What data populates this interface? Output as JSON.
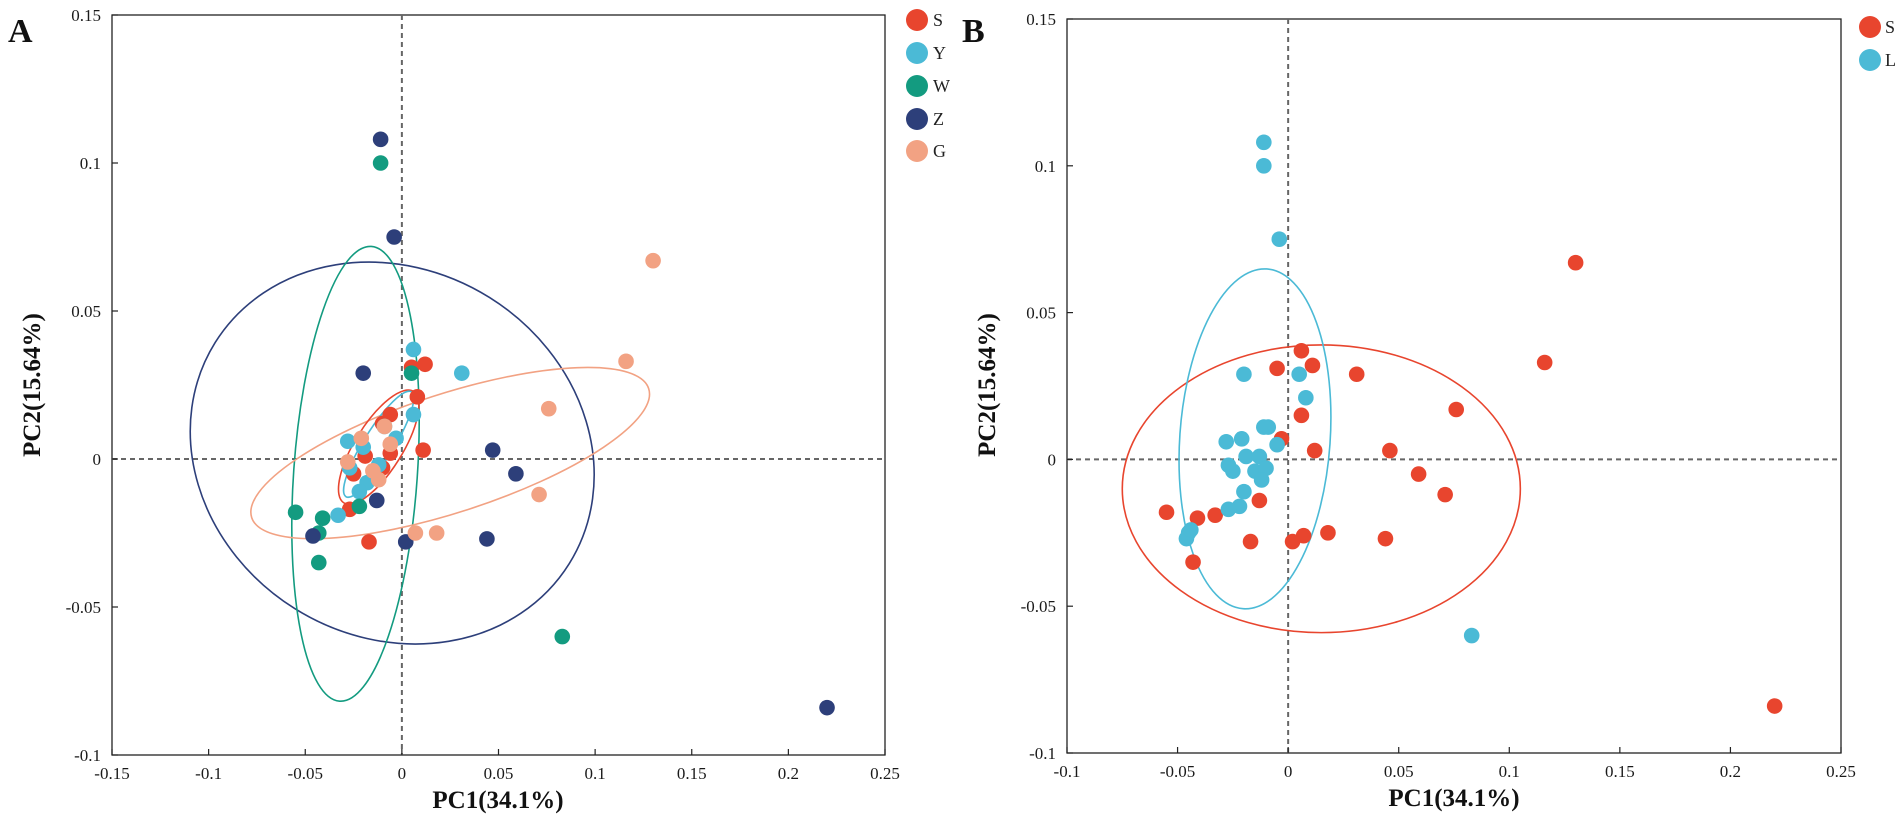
{
  "chart_data": [
    {
      "type": "scatter",
      "panel_label": "A",
      "xlabel": "PC1(34.1%)",
      "ylabel": "PC2(15.64%)",
      "xlim": [
        -0.15,
        0.25
      ],
      "ylim": [
        -0.1,
        0.15
      ],
      "xticks": [
        -0.15,
        -0.1,
        -0.05,
        0,
        0.05,
        0.1,
        0.15,
        0.2,
        0.25
      ],
      "xtick_labels": [
        "-0.15",
        "-0.1",
        "-0.05",
        "0",
        "0.05",
        "0.1",
        "0.15",
        "0.2",
        "0.25"
      ],
      "yticks": [
        -0.1,
        -0.05,
        0,
        0.05,
        0.1,
        0.15
      ],
      "ytick_labels": [
        "-0.1",
        "-0.05",
        "0",
        "0.05",
        "0.1",
        "0.15"
      ],
      "zero_lines": true,
      "legend_position": "outside-top-right",
      "series": [
        {
          "name": "S",
          "color": "#e8452e",
          "points": [
            [
              0.005,
              0.031
            ],
            [
              0.012,
              0.032
            ],
            [
              0.008,
              0.021
            ],
            [
              0.011,
              0.003
            ],
            [
              -0.006,
              0.015
            ],
            [
              -0.01,
              0.012
            ],
            [
              -0.006,
              0.002
            ],
            [
              -0.019,
              0.001
            ],
            [
              -0.025,
              -0.005
            ],
            [
              -0.01,
              -0.003
            ],
            [
              -0.014,
              -0.006
            ],
            [
              -0.027,
              -0.017
            ],
            [
              -0.017,
              -0.028
            ]
          ]
        },
        {
          "name": "Y",
          "color": "#4bbad6",
          "points": [
            [
              0.006,
              0.037
            ],
            [
              0.031,
              0.029
            ],
            [
              0.006,
              0.015
            ],
            [
              -0.009,
              0.011
            ],
            [
              -0.003,
              0.007
            ],
            [
              -0.02,
              0.004
            ],
            [
              -0.028,
              0.006
            ],
            [
              -0.027,
              -0.003
            ],
            [
              -0.018,
              -0.008
            ],
            [
              -0.022,
              -0.011
            ],
            [
              -0.033,
              -0.019
            ],
            [
              -0.012,
              -0.002
            ]
          ]
        },
        {
          "name": "W",
          "color": "#139b80",
          "points": [
            [
              -0.011,
              0.1
            ],
            [
              0.005,
              0.029
            ],
            [
              -0.055,
              -0.018
            ],
            [
              -0.041,
              -0.02
            ],
            [
              -0.043,
              -0.025
            ],
            [
              -0.043,
              -0.035
            ],
            [
              -0.022,
              -0.016
            ],
            [
              0.083,
              -0.06
            ]
          ]
        },
        {
          "name": "Z",
          "color": "#2d3f7a",
          "points": [
            [
              -0.011,
              0.108
            ],
            [
              -0.004,
              0.075
            ],
            [
              -0.02,
              0.029
            ],
            [
              0.047,
              0.003
            ],
            [
              0.059,
              -0.005
            ],
            [
              -0.013,
              -0.014
            ],
            [
              0.044,
              -0.027
            ],
            [
              0.002,
              -0.028
            ],
            [
              -0.046,
              -0.026
            ],
            [
              0.22,
              -0.084
            ]
          ]
        },
        {
          "name": "G",
          "color": "#f2a283",
          "points": [
            [
              0.13,
              0.067
            ],
            [
              0.116,
              0.033
            ],
            [
              0.076,
              0.017
            ],
            [
              0.071,
              -0.012
            ],
            [
              0.018,
              -0.025
            ],
            [
              0.007,
              -0.025
            ],
            [
              -0.009,
              0.011
            ],
            [
              -0.021,
              0.007
            ],
            [
              -0.006,
              0.005
            ],
            [
              -0.012,
              -0.007
            ],
            [
              -0.028,
              -0.001
            ],
            [
              -0.015,
              -0.004
            ]
          ]
        }
      ],
      "ellipses": [
        {
          "name": "Z",
          "color": "#2d3f7a",
          "center": [
            -0.005,
            0.002
          ],
          "rx": 0.108,
          "ry": 0.062,
          "angle_deg": -32
        },
        {
          "name": "W",
          "color": "#139b80",
          "center": [
            -0.024,
            -0.005
          ],
          "rx": 0.032,
          "ry": 0.077,
          "angle_deg": -4
        },
        {
          "name": "G",
          "color": "#f2a283",
          "center": [
            0.025,
            0.002
          ],
          "rx": 0.108,
          "ry": 0.02,
          "angle_deg": 18
        },
        {
          "name": "S",
          "color": "#e8452e",
          "center": [
            -0.012,
            0.004
          ],
          "rx": 0.034,
          "ry": 0.008,
          "angle_deg": 58
        },
        {
          "name": "Y",
          "color": "#4bbad6",
          "center": [
            -0.012,
            0.005
          ],
          "rx": 0.032,
          "ry": 0.005,
          "angle_deg": 58
        }
      ]
    },
    {
      "type": "scatter",
      "panel_label": "B",
      "xlabel": "PC1(34.1%)",
      "ylabel": "PC2(15.64%)",
      "xlim": [
        -0.1,
        0.25
      ],
      "ylim": [
        -0.1,
        0.15
      ],
      "xticks": [
        -0.1,
        -0.05,
        0,
        0.05,
        0.1,
        0.15,
        0.2,
        0.25
      ],
      "xtick_labels": [
        "-0.1",
        "-0.05",
        "0",
        "0.05",
        "0.1",
        "0.15",
        "0.2",
        "0.25"
      ],
      "yticks": [
        -0.1,
        -0.05,
        0,
        0.05,
        0.1,
        0.15
      ],
      "ytick_labels": [
        "-0.1",
        "-0.05",
        "0",
        "0.05",
        "0.1",
        "0.15"
      ],
      "zero_lines": true,
      "legend_position": "outside-top-right",
      "series": [
        {
          "name": "S",
          "color": "#e8452e",
          "points": [
            [
              0.13,
              0.067
            ],
            [
              0.116,
              0.033
            ],
            [
              0.031,
              0.029
            ],
            [
              0.006,
              0.037
            ],
            [
              0.011,
              0.032
            ],
            [
              -0.005,
              0.031
            ],
            [
              0.006,
              0.015
            ],
            [
              0.076,
              0.017
            ],
            [
              0.046,
              0.003
            ],
            [
              0.012,
              0.003
            ],
            [
              0.059,
              -0.005
            ],
            [
              0.071,
              -0.012
            ],
            [
              -0.055,
              -0.018
            ],
            [
              -0.041,
              -0.02
            ],
            [
              -0.033,
              -0.019
            ],
            [
              -0.013,
              -0.014
            ],
            [
              0.018,
              -0.025
            ],
            [
              0.007,
              -0.026
            ],
            [
              0.044,
              -0.027
            ],
            [
              -0.017,
              -0.028
            ],
            [
              0.002,
              -0.028
            ],
            [
              -0.043,
              -0.035
            ],
            [
              0.22,
              -0.084
            ],
            [
              -0.003,
              0.007
            ]
          ]
        },
        {
          "name": "L",
          "color": "#4bbad6",
          "points": [
            [
              -0.011,
              0.108
            ],
            [
              -0.011,
              0.1
            ],
            [
              -0.004,
              0.075
            ],
            [
              -0.02,
              0.029
            ],
            [
              0.005,
              0.029
            ],
            [
              0.008,
              0.021
            ],
            [
              -0.009,
              0.011
            ],
            [
              -0.011,
              0.011
            ],
            [
              -0.021,
              0.007
            ],
            [
              -0.028,
              0.006
            ],
            [
              -0.005,
              0.005
            ],
            [
              -0.019,
              0.001
            ],
            [
              -0.013,
              0.001
            ],
            [
              -0.027,
              -0.002
            ],
            [
              -0.025,
              -0.004
            ],
            [
              -0.015,
              -0.004
            ],
            [
              -0.01,
              -0.003
            ],
            [
              -0.012,
              -0.007
            ],
            [
              -0.02,
              -0.011
            ],
            [
              -0.022,
              -0.016
            ],
            [
              -0.027,
              -0.017
            ],
            [
              -0.045,
              -0.025
            ],
            [
              -0.046,
              -0.027
            ],
            [
              -0.044,
              -0.024
            ],
            [
              0.083,
              -0.06
            ]
          ]
        }
      ],
      "ellipses": [
        {
          "name": "S",
          "color": "#e8452e",
          "center": [
            0.015,
            -0.01
          ],
          "rx": 0.09,
          "ry": 0.049,
          "angle_deg": 0
        },
        {
          "name": "L",
          "color": "#4bbad6",
          "center": [
            -0.015,
            0.007
          ],
          "rx": 0.034,
          "ry": 0.058,
          "angle_deg": -4
        }
      ]
    }
  ]
}
